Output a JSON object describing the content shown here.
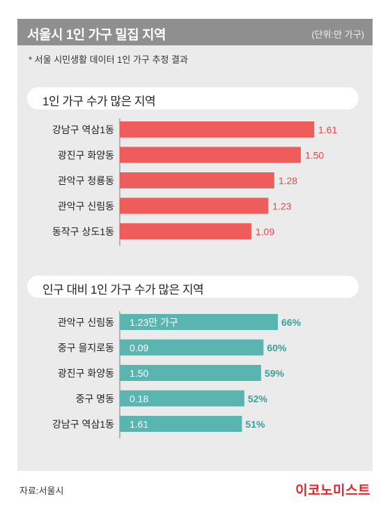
{
  "header": {
    "title": "서울시 1인 가구 밀집 지역",
    "unit": "(단위:만 가구)"
  },
  "note": "* 서울 시민생활 데이터 1인 가구 추정 결과",
  "source": "자료:서울시",
  "brand": "이코노미스트",
  "colors": {
    "red_bar": "#ee5c5c",
    "teal_bar": "#5ab5b0",
    "red_text": "#e8484a",
    "teal_text": "#3a9f9a"
  },
  "chart_data": [
    {
      "type": "bar",
      "orientation": "horizontal",
      "title": "1인 가구 수가 많은 지역",
      "categories": [
        "강남구 역삼1동",
        "광진구 화양동",
        "관악구 청룡동",
        "관악구 신림동",
        "동작구 상도1동"
      ],
      "values": [
        1.61,
        1.5,
        1.28,
        1.23,
        1.09
      ],
      "value_labels": [
        "1.61",
        "1.50",
        "1.28",
        "1.23",
        "1.09"
      ]
    },
    {
      "type": "bar",
      "orientation": "horizontal",
      "title": "인구 대비 1인 가구 수가 많은 지역",
      "categories": [
        "관악구 신림동",
        "중구 을지로동",
        "광진구 화양동",
        "중구 명동",
        "강남구 역삼1동"
      ],
      "values": [
        66,
        60,
        59,
        52,
        51
      ],
      "value_labels": [
        "66%",
        "60%",
        "59%",
        "52%",
        "51%"
      ],
      "households": [
        "1.23만 가구",
        "0.09",
        "1.50",
        "0.18",
        "1.61"
      ]
    }
  ]
}
